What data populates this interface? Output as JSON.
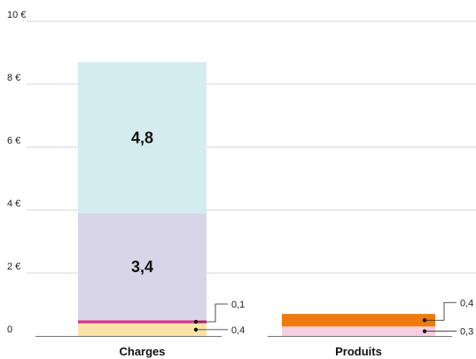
{
  "chart_data": {
    "type": "bar",
    "stacked": true,
    "categories": [
      "Charges",
      "Produits"
    ],
    "y_ticks": [
      "0",
      "2 €",
      "4 €",
      "6 €",
      "8 €",
      "10 €"
    ],
    "ylim": [
      0,
      10
    ],
    "grid": true,
    "stacks": [
      {
        "category": "Charges",
        "segments": [
          {
            "value": 0.4,
            "label": "0,4",
            "color": "#fbe3a8",
            "label_style": "callout"
          },
          {
            "value": 0.1,
            "label": "0,1",
            "color": "#d63c8c",
            "label_style": "callout"
          },
          {
            "value": 3.4,
            "label": "3,4",
            "color": "#d8d5e8",
            "label_style": "inside"
          },
          {
            "value": 4.8,
            "label": "4,8",
            "color": "#d4ecef",
            "label_style": "inside"
          }
        ]
      },
      {
        "category": "Produits",
        "segments": [
          {
            "value": 0.3,
            "label": "0,3",
            "color": "#f7cfe0",
            "label_style": "callout"
          },
          {
            "value": 0.4,
            "label": "0,4",
            "color": "#ee7a0c",
            "label_style": "callout"
          }
        ]
      }
    ]
  }
}
